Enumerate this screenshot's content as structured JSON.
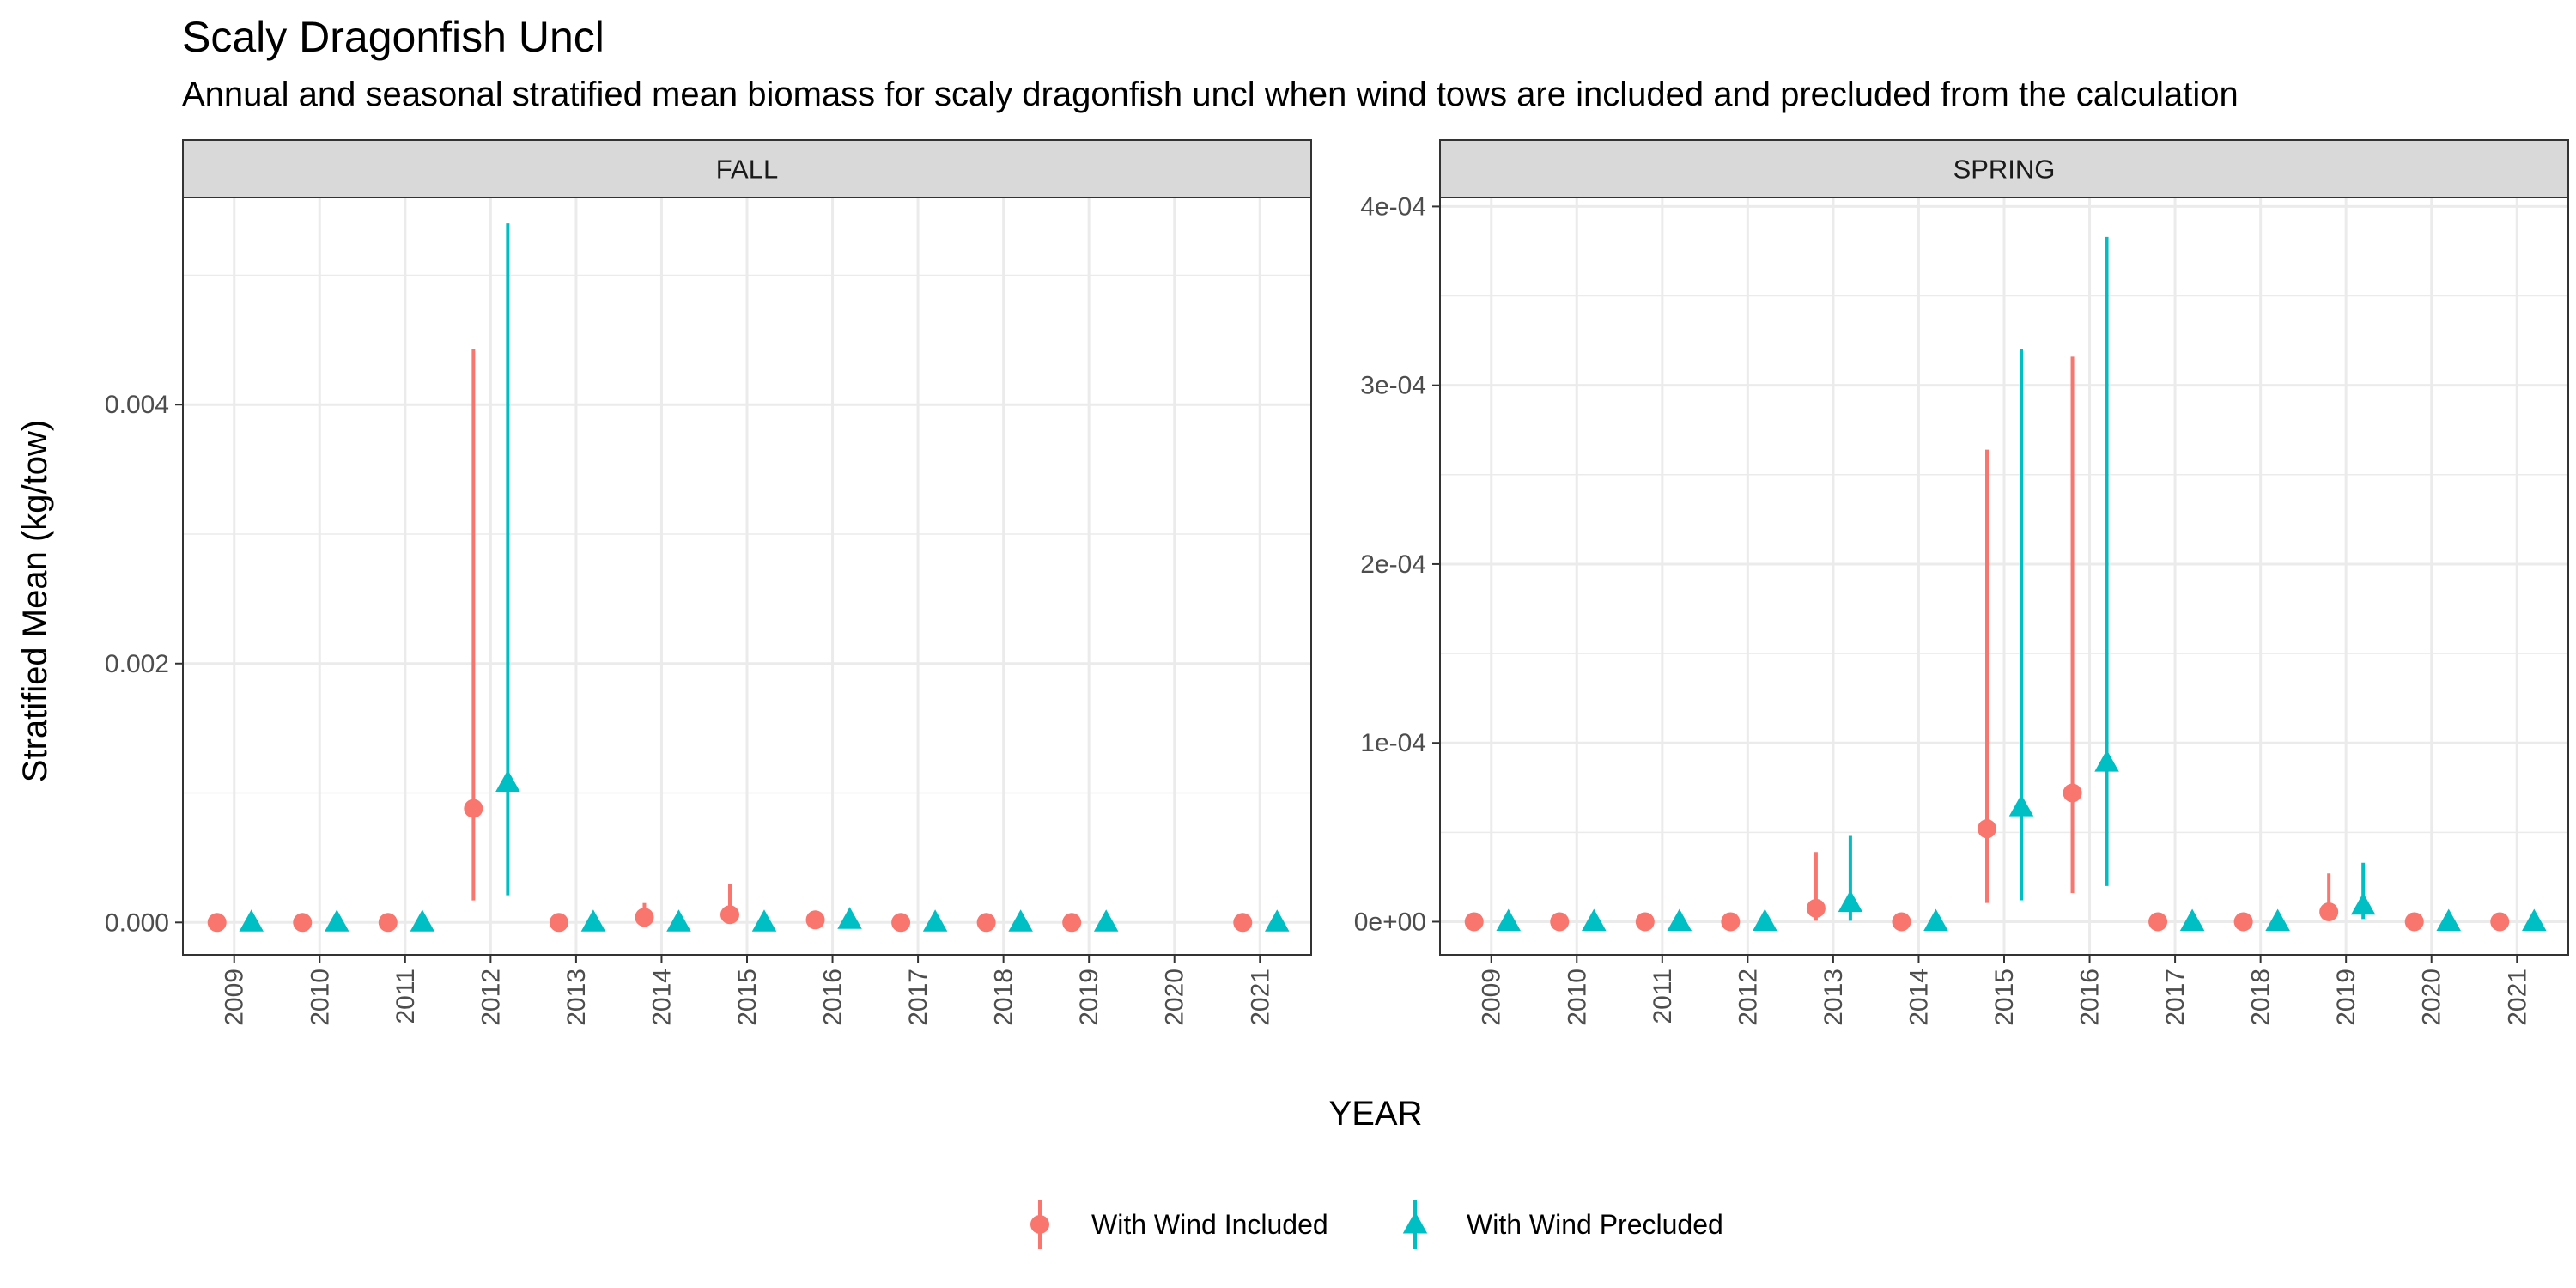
{
  "chart_data": {
    "type": "scatter",
    "title": "Scaly Dragonfish Uncl",
    "subtitle": "Annual and seasonal stratified mean biomass for scaly dragonfish uncl when wind tows are included and precluded from the calculation",
    "xlabel": "YEAR",
    "ylabel": "Stratified Mean (kg/tow)",
    "grid": true,
    "legend_position": "bottom",
    "categories": [
      "2009",
      "2010",
      "2011",
      "2012",
      "2013",
      "2014",
      "2015",
      "2016",
      "2017",
      "2018",
      "2019",
      "2020",
      "2021"
    ],
    "legend": [
      {
        "name": "With Wind Included",
        "color": "#F8766D",
        "shape": "circle"
      },
      {
        "name": "With Wind Precluded",
        "color": "#00BFC4",
        "shape": "triangle"
      }
    ],
    "panels": [
      {
        "label": "FALL",
        "ylim": [
          -0.00025,
          0.0056
        ],
        "yticks": [
          0,
          0.002,
          0.004
        ],
        "ytick_labels": [
          "0.000",
          "0.002",
          "0.004"
        ],
        "series": [
          {
            "name": "With Wind Included",
            "color": "#F8766D",
            "shape": "circle",
            "points": [
              {
                "x": "2009",
                "y": 0,
                "lo": 0,
                "hi": 0
              },
              {
                "x": "2010",
                "y": 0,
                "lo": 0,
                "hi": 0
              },
              {
                "x": "2011",
                "y": 0,
                "lo": 0,
                "hi": 0
              },
              {
                "x": "2012",
                "y": 0.00088,
                "lo": 0.00017,
                "hi": 0.00443
              },
              {
                "x": "2013",
                "y": 0,
                "lo": 0,
                "hi": 0
              },
              {
                "x": "2014",
                "y": 4e-05,
                "lo": 0,
                "hi": 0.00015
              },
              {
                "x": "2015",
                "y": 6e-05,
                "lo": 0,
                "hi": 0.0003
              },
              {
                "x": "2016",
                "y": 2e-05,
                "lo": 0,
                "hi": 4e-05
              },
              {
                "x": "2017",
                "y": 0,
                "lo": 0,
                "hi": 0
              },
              {
                "x": "2018",
                "y": 0,
                "lo": 0,
                "hi": 0
              },
              {
                "x": "2019",
                "y": 0,
                "lo": 0,
                "hi": 0
              },
              {
                "x": "2021",
                "y": 0,
                "lo": 0,
                "hi": 0
              }
            ]
          },
          {
            "name": "With Wind Precluded",
            "color": "#00BFC4",
            "shape": "triangle",
            "points": [
              {
                "x": "2009",
                "y": 0,
                "lo": 0,
                "hi": 0
              },
              {
                "x": "2010",
                "y": 0,
                "lo": 0,
                "hi": 0
              },
              {
                "x": "2011",
                "y": 0,
                "lo": 0,
                "hi": 0
              },
              {
                "x": "2012",
                "y": 0.00108,
                "lo": 0.00021,
                "hi": 0.0054
              },
              {
                "x": "2013",
                "y": 0,
                "lo": 0,
                "hi": 0
              },
              {
                "x": "2014",
                "y": 0,
                "lo": 0,
                "hi": 0
              },
              {
                "x": "2015",
                "y": 0,
                "lo": 0,
                "hi": 0
              },
              {
                "x": "2016",
                "y": 2e-05,
                "lo": 0,
                "hi": 4e-05
              },
              {
                "x": "2017",
                "y": 0,
                "lo": 0,
                "hi": 0
              },
              {
                "x": "2018",
                "y": 0,
                "lo": 0,
                "hi": 0
              },
              {
                "x": "2019",
                "y": 0,
                "lo": 0,
                "hi": 0
              },
              {
                "x": "2021",
                "y": 0,
                "lo": 0,
                "hi": 0
              }
            ]
          }
        ]
      },
      {
        "label": "SPRING",
        "ylim": [
          -1.85e-05,
          0.000405
        ],
        "yticks": [
          0,
          0.0001,
          0.0002,
          0.0003,
          0.0004
        ],
        "ytick_labels": [
          "0e+00",
          "1e-04",
          "2e-04",
          "3e-04",
          "4e-04"
        ],
        "series": [
          {
            "name": "With Wind Included",
            "color": "#F8766D",
            "shape": "circle",
            "points": [
              {
                "x": "2009",
                "y": 0,
                "lo": 0,
                "hi": 0
              },
              {
                "x": "2010",
                "y": 0,
                "lo": 0,
                "hi": 0
              },
              {
                "x": "2011",
                "y": 0,
                "lo": 0,
                "hi": 0
              },
              {
                "x": "2012",
                "y": 0,
                "lo": 0,
                "hi": 0
              },
              {
                "x": "2013",
                "y": 7.5e-06,
                "lo": 5e-07,
                "hi": 3.9e-05
              },
              {
                "x": "2014",
                "y": 0,
                "lo": 0,
                "hi": 0
              },
              {
                "x": "2015",
                "y": 5.2e-05,
                "lo": 1.05e-05,
                "hi": 0.000264
              },
              {
                "x": "2016",
                "y": 7.2e-05,
                "lo": 1.6e-05,
                "hi": 0.000316
              },
              {
                "x": "2017",
                "y": 0,
                "lo": 0,
                "hi": 0
              },
              {
                "x": "2018",
                "y": 0,
                "lo": 0,
                "hi": 0
              },
              {
                "x": "2019",
                "y": 5.5e-06,
                "lo": 1e-06,
                "hi": 2.7e-05
              },
              {
                "x": "2020",
                "y": 0,
                "lo": 0,
                "hi": 0
              },
              {
                "x": "2021",
                "y": 0,
                "lo": 0,
                "hi": 0
              }
            ]
          },
          {
            "name": "With Wind Precluded",
            "color": "#00BFC4",
            "shape": "triangle",
            "points": [
              {
                "x": "2009",
                "y": 0,
                "lo": 0,
                "hi": 0
              },
              {
                "x": "2010",
                "y": 0,
                "lo": 0,
                "hi": 0
              },
              {
                "x": "2011",
                "y": 0,
                "lo": 0,
                "hi": 0
              },
              {
                "x": "2012",
                "y": 0,
                "lo": 0,
                "hi": 0
              },
              {
                "x": "2013",
                "y": 1.05e-05,
                "lo": 5e-07,
                "hi": 4.8e-05
              },
              {
                "x": "2014",
                "y": 0,
                "lo": 0,
                "hi": 0
              },
              {
                "x": "2015",
                "y": 6.4e-05,
                "lo": 1.2e-05,
                "hi": 0.00032
              },
              {
                "x": "2016",
                "y": 8.9e-05,
                "lo": 2e-05,
                "hi": 0.000383
              },
              {
                "x": "2017",
                "y": 0,
                "lo": 0,
                "hi": 0
              },
              {
                "x": "2018",
                "y": 0,
                "lo": 0,
                "hi": 0
              },
              {
                "x": "2019",
                "y": 9e-06,
                "lo": 1.5e-06,
                "hi": 3.3e-05
              },
              {
                "x": "2020",
                "y": 0,
                "lo": 0,
                "hi": 0
              },
              {
                "x": "2021",
                "y": 0,
                "lo": 0,
                "hi": 0
              }
            ]
          }
        ]
      }
    ]
  }
}
